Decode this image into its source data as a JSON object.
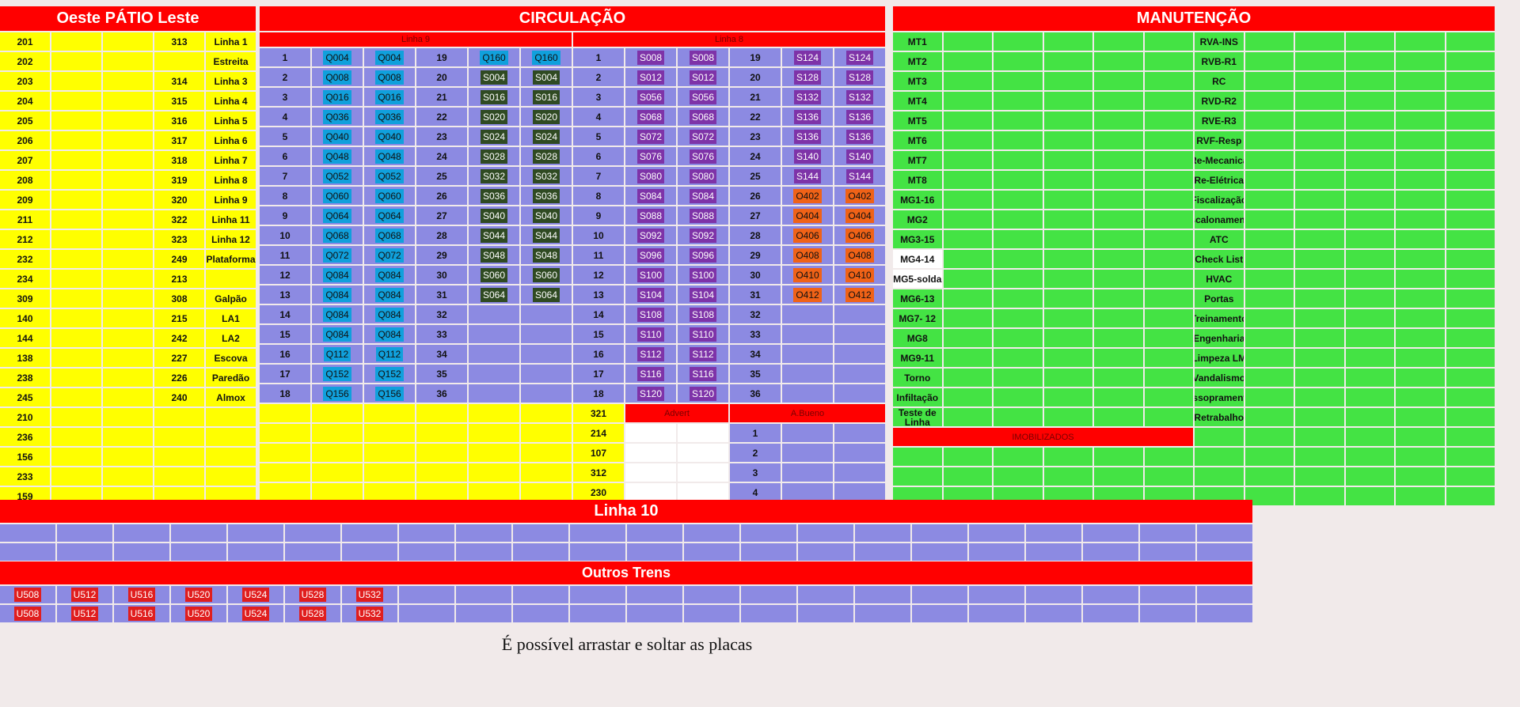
{
  "sections": {
    "patio": "Oeste PÁTIO Leste",
    "circulacao": "CIRCULAÇÃO",
    "manutencao": "MANUTENÇÃO",
    "linha9": "Linha 9",
    "linha8": "Linha 8",
    "advert": "Advert",
    "abueno": "A.Bueno",
    "imobilizados": "IMOBILIZADOS",
    "linha10": "Linha 10",
    "outros": "Outros Trens"
  },
  "patio_rows": [
    [
      "201",
      "313",
      "Linha 1"
    ],
    [
      "202",
      "",
      "Estreita"
    ],
    [
      "203",
      "314",
      "Linha 3"
    ],
    [
      "204",
      "315",
      "Linha 4"
    ],
    [
      "205",
      "316",
      "Linha 5"
    ],
    [
      "206",
      "317",
      "Linha 6"
    ],
    [
      "207",
      "318",
      "Linha 7"
    ],
    [
      "208",
      "319",
      "Linha 8"
    ],
    [
      "209",
      "320",
      "Linha 9"
    ],
    [
      "211",
      "322",
      "Linha 11"
    ],
    [
      "212",
      "323",
      "Linha 12"
    ],
    [
      "232",
      "249",
      "Plataforma"
    ],
    [
      "234",
      "213",
      ""
    ],
    [
      "309",
      "308",
      "Galpão"
    ],
    [
      "140",
      "215",
      "LA1"
    ],
    [
      "144",
      "242",
      "LA2"
    ],
    [
      "138",
      "227",
      "Escova"
    ],
    [
      "238",
      "226",
      "Paredão"
    ],
    [
      "245",
      "240",
      "Almox"
    ]
  ],
  "patio_extra": [
    "210",
    "236",
    "156",
    "233",
    "159"
  ],
  "linha9_rows": [
    [
      "1",
      "Q004",
      "Q004",
      "19",
      "Q160",
      "Q160"
    ],
    [
      "2",
      "Q008",
      "Q008",
      "20",
      "S004",
      "S004"
    ],
    [
      "3",
      "Q016",
      "Q016",
      "21",
      "S016",
      "S016"
    ],
    [
      "4",
      "Q036",
      "Q036",
      "22",
      "S020",
      "S020"
    ],
    [
      "5",
      "Q040",
      "Q040",
      "23",
      "S024",
      "S024"
    ],
    [
      "6",
      "Q048",
      "Q048",
      "24",
      "S028",
      "S028"
    ],
    [
      "7",
      "Q052",
      "Q052",
      "25",
      "S032",
      "S032"
    ],
    [
      "8",
      "Q060",
      "Q060",
      "26",
      "S036",
      "S036"
    ],
    [
      "9",
      "Q064",
      "Q064",
      "27",
      "S040",
      "S040"
    ],
    [
      "10",
      "Q068",
      "Q068",
      "28",
      "S044",
      "S044"
    ],
    [
      "11",
      "Q072",
      "Q072",
      "29",
      "S048",
      "S048"
    ],
    [
      "12",
      "Q084",
      "Q084",
      "30",
      "S060",
      "S060"
    ],
    [
      "13",
      "Q084",
      "Q084",
      "31",
      "S064",
      "S064"
    ],
    [
      "14",
      "Q084",
      "Q084",
      "32",
      "",
      ""
    ],
    [
      "15",
      "Q084",
      "Q084",
      "33",
      "",
      ""
    ],
    [
      "16",
      "Q112",
      "Q112",
      "34",
      "",
      ""
    ],
    [
      "17",
      "Q152",
      "Q152",
      "35",
      "",
      ""
    ],
    [
      "18",
      "Q156",
      "Q156",
      "36",
      "",
      ""
    ]
  ],
  "linha8_rows": [
    [
      "1",
      "S008",
      "S008",
      "19",
      "S124",
      "S124"
    ],
    [
      "2",
      "S012",
      "S012",
      "20",
      "S128",
      "S128"
    ],
    [
      "3",
      "S056",
      "S056",
      "21",
      "S132",
      "S132"
    ],
    [
      "4",
      "S068",
      "S068",
      "22",
      "S136",
      "S136"
    ],
    [
      "5",
      "S072",
      "S072",
      "23",
      "S136",
      "S136"
    ],
    [
      "6",
      "S076",
      "S076",
      "24",
      "S140",
      "S140"
    ],
    [
      "7",
      "S080",
      "S080",
      "25",
      "S144",
      "S144"
    ],
    [
      "8",
      "S084",
      "S084",
      "26",
      "O402",
      "O402"
    ],
    [
      "9",
      "S088",
      "S088",
      "27",
      "O404",
      "O404"
    ],
    [
      "10",
      "S092",
      "S092",
      "28",
      "O406",
      "O406"
    ],
    [
      "11",
      "S096",
      "S096",
      "29",
      "O408",
      "O408"
    ],
    [
      "12",
      "S100",
      "S100",
      "30",
      "O410",
      "O410"
    ],
    [
      "13",
      "S104",
      "S104",
      "31",
      "O412",
      "O412"
    ],
    [
      "14",
      "S108",
      "S108",
      "32",
      "",
      ""
    ],
    [
      "15",
      "S110",
      "S110",
      "33",
      "",
      ""
    ],
    [
      "16",
      "S112",
      "S112",
      "34",
      "",
      ""
    ],
    [
      "17",
      "S116",
      "S116",
      "35",
      "",
      ""
    ],
    [
      "18",
      "S120",
      "S120",
      "36",
      "",
      ""
    ]
  ],
  "circ_extra": [
    [
      "321",
      "",
      "",
      "",
      "",
      ""
    ],
    [
      "214",
      "",
      "",
      "1",
      "",
      ""
    ],
    [
      "107",
      "",
      "",
      "2",
      "",
      ""
    ],
    [
      "312",
      "",
      "",
      "3",
      "",
      ""
    ],
    [
      "230",
      "",
      "",
      "4",
      "",
      ""
    ]
  ],
  "manut_left": [
    "MT1",
    "MT2",
    "MT3",
    "MT4",
    "MT5",
    "MT6",
    "MT7",
    "MT8",
    "MG1-16",
    "MG2",
    "MG3-15",
    "MG4-14",
    "MG5-solda",
    "MG6-13",
    "MG7- 12",
    "MG8",
    "MG9-11",
    "Torno",
    "Infiltação",
    "Teste de Linha"
  ],
  "manut_right": [
    "RVA-INS",
    "RVB-R1",
    "RC",
    "RVD-R2",
    "RVE-R3",
    "RVF-Resp",
    "Re-Mecanica",
    "Re-Elétrica",
    "Fiscalização",
    "Escalonamento",
    "ATC",
    "Check List",
    "HVAC",
    "Portas",
    "Treinamento",
    "Engenharia",
    "Limpeza LM",
    "Vandalismo",
    "Assopramento",
    "Retrabalho"
  ],
  "outros_tags": [
    "U508",
    "U512",
    "U516",
    "U520",
    "U524",
    "U528",
    "U532"
  ],
  "note": "É possível arrastar e soltar as placas",
  "colors": {
    "red": "#ff0000",
    "yellow": "#ffff00",
    "purple": "#8c8ae2",
    "green": "#44e344",
    "tag_q": "#10a0dc",
    "tag_s": "#7e33a8",
    "tag_dark": "#2f4a22",
    "tag_o": "#f06217",
    "tag_u": "#e01e1e"
  }
}
